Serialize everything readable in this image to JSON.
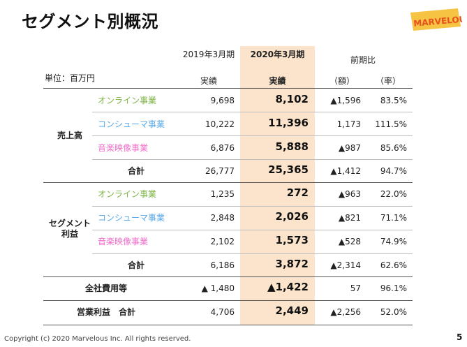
{
  "title": "セグメント別概況",
  "logo": {
    "text": "MARVELOUS!",
    "color": "#e8501f"
  },
  "unit_label": "単位：百万円",
  "header": {
    "fy2019": "2019年3月期",
    "fy2020": "2020年3月期",
    "yoy": "前期比",
    "actual": "実績",
    "actual_bold": "実績",
    "amount": "（額）",
    "rate": "（率）"
  },
  "groups": {
    "sales": "売上高",
    "profit": "セグメント\n利益"
  },
  "rows": [
    {
      "label": "オンライン事業",
      "fy2019": "9,698",
      "fy2020": "8,102",
      "diff": "▲1,596",
      "rate": "83.5%"
    },
    {
      "label": "コンシューマ事業",
      "fy2019": "10,222",
      "fy2020": "11,396",
      "diff": "1,173",
      "rate": "111.5%"
    },
    {
      "label": "音楽映像事業",
      "fy2019": "6,876",
      "fy2020": "5,888",
      "diff": "▲987",
      "rate": "85.6%"
    },
    {
      "label": "合計",
      "fy2019": "26,777",
      "fy2020": "25,365",
      "diff": "▲1,412",
      "rate": "94.7%"
    },
    {
      "label": "オンライン事業",
      "fy2019": "1,235",
      "fy2020": "272",
      "diff": "▲963",
      "rate": "22.0%"
    },
    {
      "label": "コンシューマ事業",
      "fy2019": "2,848",
      "fy2020": "2,026",
      "diff": "▲821",
      "rate": "71.1%"
    },
    {
      "label": "音楽映像事業",
      "fy2019": "2,102",
      "fy2020": "1,573",
      "diff": "▲528",
      "rate": "74.9%"
    },
    {
      "label": "合計",
      "fy2019": "6,186",
      "fy2020": "3,872",
      "diff": "▲2,314",
      "rate": "62.6%"
    },
    {
      "label": "全社費用等",
      "fy2019": "▲ 1,480",
      "fy2020": "▲1,422",
      "diff": "57",
      "rate": "96.1%"
    },
    {
      "label": "営業利益　合計",
      "fy2019": "4,706",
      "fy2020": "2,449",
      "diff": "▲2,256",
      "rate": "52.0%"
    }
  ],
  "colors": {
    "online": "#7cb342",
    "consumer": "#5aa9e6",
    "music": "#f06ecb",
    "highlight": "#fbe4cb"
  },
  "footer": "Copyright (c) 2020 Marvelous Inc. All rights reserved.",
  "page_number": "5"
}
